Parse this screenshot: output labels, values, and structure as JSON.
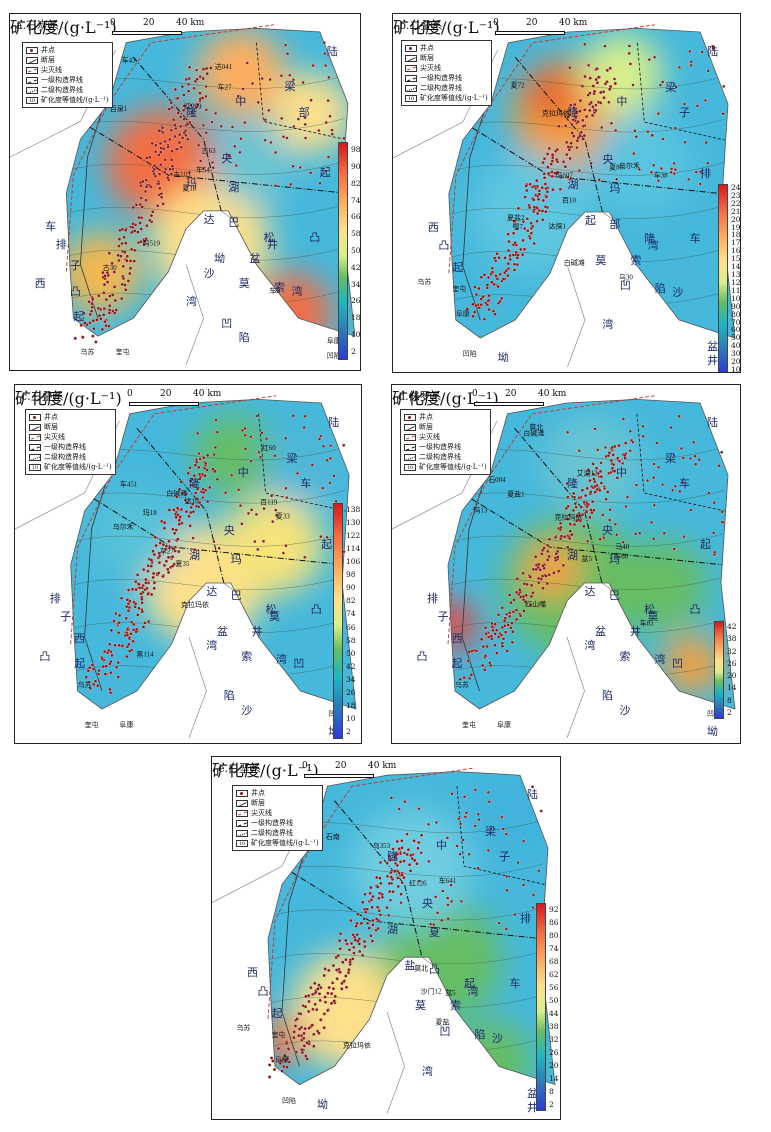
{
  "unit_label": "矿化度/(g·L⁻¹)",
  "scale": {
    "ticks": [
      "0",
      "20",
      "40 km"
    ]
  },
  "legend_items": [
    {
      "icon": "well-point-icon",
      "label": "井点"
    },
    {
      "icon": "fault-line-icon",
      "label": "断层"
    },
    {
      "icon": "pinchout-line-icon",
      "label": "尖灭线"
    },
    {
      "icon": "first-order-boundary-icon",
      "label": "一级构造界线"
    },
    {
      "icon": "second-order-boundary-icon",
      "label": "二级构造界线"
    },
    {
      "icon": "isoline-icon",
      "label": "矿化度等值线/(g·L⁻¹)"
    }
  ],
  "panels": [
    {
      "id": "a",
      "title": "a.石炭系",
      "colorbar_ticks": [
        "98",
        "90",
        "82",
        "74",
        "66",
        "58",
        "50",
        "42",
        "34",
        "26",
        "18",
        "10",
        "2"
      ],
      "places": [
        "陆",
        "梁",
        "隆",
        "中",
        "央",
        "玛",
        "湖",
        "达",
        "巴",
        "松",
        "凸",
        "起",
        "部",
        "车",
        "排",
        "子",
        "西",
        "凸",
        "起",
        "乌苏",
        "奎屯",
        "阜康",
        "凹陷",
        "坳",
        "盆",
        "井",
        "莫",
        "索",
        "湾",
        "凹",
        "陷",
        "沙",
        "湾"
      ],
      "well_labels": [
        "夏18",
        "百泉1",
        "古103",
        "古30",
        "古63",
        "玛519",
        "达041",
        "红099",
        "车27",
        "车54",
        "车43",
        "车2"
      ]
    },
    {
      "id": "b",
      "title": "b.二叠系",
      "colorbar_ticks": [
        "240",
        "230",
        "220",
        "210",
        "200",
        "190",
        "180",
        "170",
        "160",
        "150",
        "140",
        "130",
        "120",
        "110",
        "100",
        "90",
        "80",
        "70",
        "60",
        "50",
        "40",
        "30",
        "20",
        "10"
      ],
      "places": [
        "陆",
        "梁",
        "隆",
        "中",
        "央",
        "湖",
        "玛",
        "起",
        "部",
        "隆",
        "车",
        "排",
        "子",
        "西",
        "凸",
        "起",
        "乌苏",
        "奎屯",
        "阜康",
        "凹陷",
        "坳",
        "盆",
        "井",
        "莫",
        "索",
        "湾",
        "凹",
        "陷",
        "沙",
        "湾"
      ],
      "well_labels": [
        "夏80",
        "乌30",
        "乌尔禾",
        "百10",
        "白碱滩",
        "克拉玛依",
        "玛607",
        "夏盐2",
        "达探1",
        "车38",
        "鄂7",
        "夏72"
      ]
    },
    {
      "id": "c",
      "title": "c.三叠系",
      "colorbar_ticks": [
        "138",
        "130",
        "122",
        "114",
        "106",
        "98",
        "90",
        "82",
        "74",
        "66",
        "58",
        "50",
        "42",
        "34",
        "26",
        "18",
        "10",
        "2"
      ],
      "places": [
        "陆",
        "梁",
        "隆",
        "中",
        "央",
        "湖",
        "玛",
        "达",
        "巴",
        "松",
        "凸",
        "起",
        "车",
        "排",
        "子",
        "西",
        "凸",
        "起",
        "乌苏",
        "奎屯",
        "阜康",
        "凹陷",
        "坳",
        "盆",
        "井",
        "莫",
        "索",
        "湾",
        "凹",
        "陷",
        "沙",
        "湾"
      ],
      "well_labels": [
        "夏33",
        "夏35",
        "乌尔禾",
        "百119",
        "白碱滩",
        "克拉玛依",
        "黑114",
        "红60",
        "车451",
        "车27",
        "玛18",
        "达10"
      ]
    },
    {
      "id": "d",
      "title": "d.侏罗系",
      "colorbar_ticks": [
        "42",
        "38",
        "32",
        "26",
        "20",
        "14",
        "8",
        "2"
      ],
      "places": [
        "陆",
        "梁",
        "隆",
        "中",
        "央",
        "湖",
        "玛",
        "达",
        "巴",
        "松",
        "凸",
        "起",
        "车",
        "排",
        "子",
        "西",
        "凸",
        "起",
        "乌苏",
        "奎屯",
        "阜康",
        "凹陷",
        "坳",
        "盆",
        "井",
        "莫",
        "索",
        "湾",
        "凹",
        "陷",
        "沙",
        "湾"
      ],
      "well_labels": [
        "夏盐1",
        "石004",
        "克拉玛依",
        "白碱滩",
        "红山嘴",
        "艾湖12",
        "玛13",
        "盆5",
        "车83",
        "车60",
        "莫北",
        "马40"
      ]
    },
    {
      "id": "e",
      "title": "e.白垩系",
      "colorbar_ticks": [
        "92",
        "86",
        "80",
        "74",
        "68",
        "62",
        "56",
        "50",
        "44",
        "38",
        "32",
        "26",
        "20",
        "14",
        "8",
        "2"
      ],
      "places": [
        "陆",
        "梁",
        "隆",
        "中",
        "央",
        "湖",
        "夏",
        "盐",
        "凸",
        "起",
        "车",
        "排",
        "子",
        "西",
        "凸",
        "起",
        "乌苏",
        "奎屯",
        "阜康",
        "凹陷",
        "坳",
        "盆",
        "井",
        "莫",
        "索",
        "湾",
        "凹",
        "陷",
        "沙",
        "湾"
      ],
      "well_labels": [
        "乌353",
        "夏盐",
        "车641",
        "沙门12",
        "石南",
        "莫北",
        "盆5",
        "克拉玛依",
        "红126"
      ]
    }
  ]
}
